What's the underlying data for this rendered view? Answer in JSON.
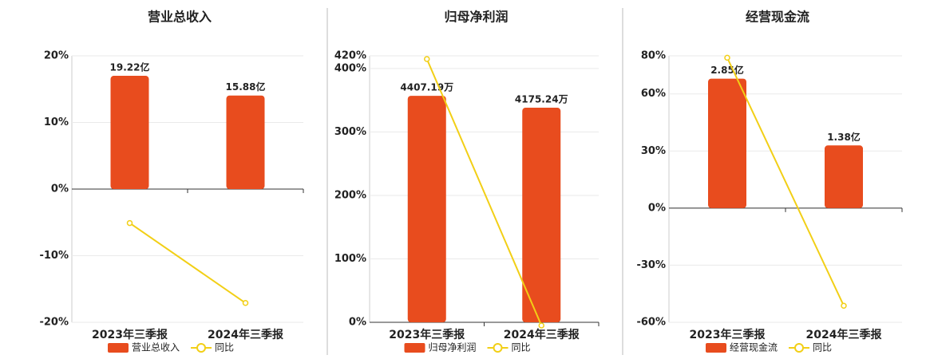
{
  "chart_data": [
    {
      "type": "bar",
      "title": "营业总收入",
      "categories": [
        "2023年三季报",
        "2024年三季报"
      ],
      "series": [
        {
          "name": "营业总收入",
          "color": "#e84c1e",
          "values": [
            19.22,
            15.88
          ],
          "value_labels": [
            "19.22亿",
            "15.88亿"
          ]
        },
        {
          "name": "同比",
          "color": "#f2cf16",
          "type": "line",
          "values": [
            -5.1,
            -17.1
          ]
        }
      ],
      "ylim": [
        -20,
        20
      ],
      "yticks": [
        {
          "value": -20,
          "label": "-20%"
        },
        {
          "value": -10,
          "label": "-10%"
        },
        {
          "value": 0,
          "label": "0%"
        },
        {
          "value": 10,
          "label": "10%"
        },
        {
          "value": 20,
          "label": "20%"
        }
      ],
      "grid": true
    },
    {
      "type": "bar",
      "title": "归母净利润",
      "categories": [
        "2023年三季报",
        "2024年三季报"
      ],
      "series": [
        {
          "name": "归母净利润",
          "color": "#e84c1e",
          "values": [
            4407.19,
            4175.24
          ],
          "value_labels": [
            "4407.19万",
            "4175.24万"
          ]
        },
        {
          "name": "同比",
          "color": "#f2cf16",
          "type": "line",
          "values": [
            415,
            -5
          ]
        }
      ],
      "ylim": [
        0,
        420
      ],
      "yticks": [
        {
          "value": 0,
          "label": "0%"
        },
        {
          "value": 100,
          "label": "100%"
        },
        {
          "value": 200,
          "label": "200%"
        },
        {
          "value": 300,
          "label": "300%"
        },
        {
          "value": 400,
          "label": "400%"
        },
        {
          "value": 420,
          "label": "420%"
        }
      ],
      "grid": true
    },
    {
      "type": "bar",
      "title": "经营现金流",
      "categories": [
        "2023年三季报",
        "2024年三季报"
      ],
      "series": [
        {
          "name": "经营现金流",
          "color": "#e84c1e",
          "values": [
            2.85,
            1.38
          ],
          "value_labels": [
            "2.85亿",
            "1.38亿"
          ]
        },
        {
          "name": "同比",
          "color": "#f2cf16",
          "type": "line",
          "values": [
            79,
            -51.3
          ]
        }
      ],
      "ylim": [
        -60,
        80
      ],
      "yticks": [
        {
          "value": -60,
          "label": "-60%"
        },
        {
          "value": -30,
          "label": "-30%"
        },
        {
          "value": 0,
          "label": "0%"
        },
        {
          "value": 30,
          "label": "30%"
        },
        {
          "value": 60,
          "label": "60%"
        },
        {
          "value": 80,
          "label": "80%"
        }
      ],
      "grid": true
    }
  ]
}
